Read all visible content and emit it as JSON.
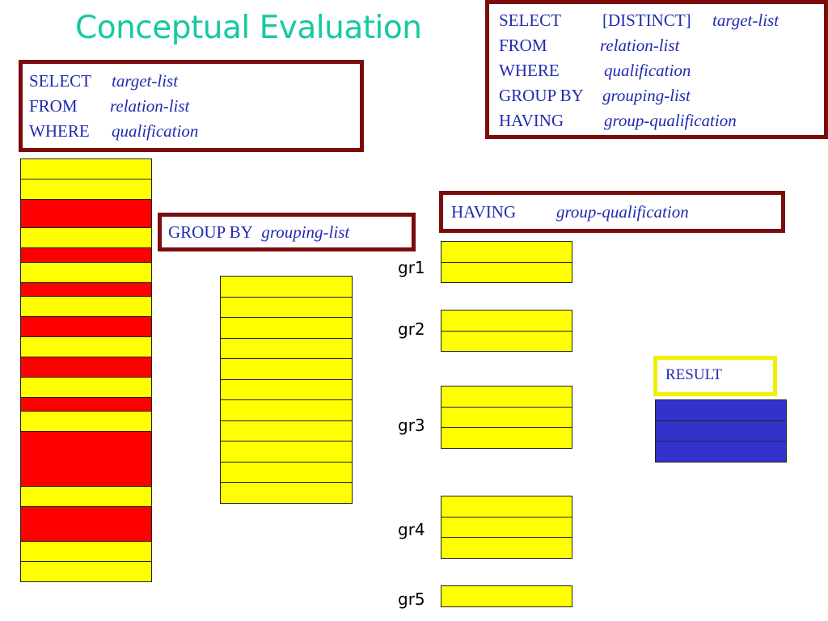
{
  "title": "Conceptual Evaluation",
  "colors": {
    "title": "#17c8a2",
    "box_border": "#7a0c0c",
    "sql_text": "#1f2bb0",
    "yellow": "#ffff00",
    "red": "#ff0000",
    "blue": "#3333cc",
    "result_border": "#f2ef05"
  },
  "full_query": {
    "select_kw": "SELECT",
    "distinct": "[DISTINCT]",
    "target": "target-list",
    "from_kw": "FROM",
    "relation": "relation-list",
    "where_kw": "WHERE",
    "qualification": "qualification",
    "groupby_kw": "GROUP BY",
    "grouping": "grouping-list",
    "having_kw": "HAVING",
    "group_qualification": "group-qualification"
  },
  "basic_query": {
    "select_kw": "SELECT",
    "target": "target-list",
    "from_kw": "FROM",
    "relation": "relation-list",
    "where_kw": "WHERE",
    "qualification": "qualification"
  },
  "group_by": {
    "kw": "GROUP BY",
    "value": "grouping-list"
  },
  "having": {
    "kw": "HAVING",
    "value": "group-qualification"
  },
  "result_label": "RESULT",
  "input_rows": [
    "yellow",
    "yellow",
    "red",
    "yellow",
    "red",
    "yellow",
    "red",
    "yellow",
    "red",
    "yellow",
    "red",
    "yellow",
    "red",
    "yellow",
    "red",
    "yellow",
    "red",
    "yellow",
    "yellow"
  ],
  "qualified_rows": 11,
  "groups": [
    {
      "label": "gr1",
      "rows": 2
    },
    {
      "label": "gr2",
      "rows": 2
    },
    {
      "label": "gr3",
      "rows": 3
    },
    {
      "label": "gr4",
      "rows": 3
    },
    {
      "label": "gr5",
      "rows": 1
    }
  ],
  "result_rows": 3
}
